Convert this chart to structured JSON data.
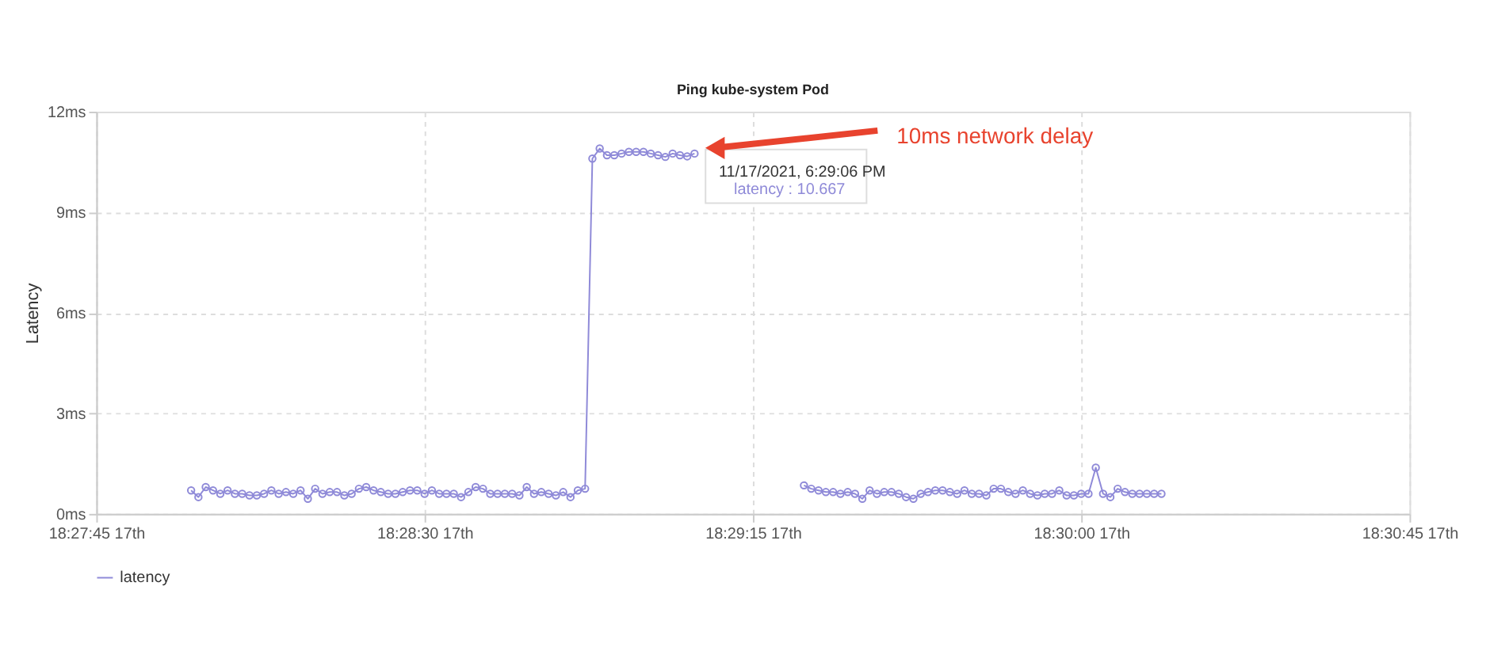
{
  "chart_data": {
    "type": "line",
    "title": "Ping kube-system Pod",
    "ylabel": "Latency",
    "series": [
      {
        "name": "latency",
        "color": "#8f8ad8",
        "x": [
          "2021-11-17T18:27:58",
          "2021-11-17T18:27:59",
          "2021-11-17T18:28:00",
          "2021-11-17T18:28:01",
          "2021-11-17T18:28:02",
          "2021-11-17T18:28:03",
          "2021-11-17T18:28:04",
          "2021-11-17T18:28:05",
          "2021-11-17T18:28:06",
          "2021-11-17T18:28:07",
          "2021-11-17T18:28:08",
          "2021-11-17T18:28:09",
          "2021-11-17T18:28:10",
          "2021-11-17T18:28:11",
          "2021-11-17T18:28:12",
          "2021-11-17T18:28:13",
          "2021-11-17T18:28:14",
          "2021-11-17T18:28:15",
          "2021-11-17T18:28:16",
          "2021-11-17T18:28:17",
          "2021-11-17T18:28:18",
          "2021-11-17T18:28:19",
          "2021-11-17T18:28:20",
          "2021-11-17T18:28:21",
          "2021-11-17T18:28:22",
          "2021-11-17T18:28:23",
          "2021-11-17T18:28:24",
          "2021-11-17T18:28:25",
          "2021-11-17T18:28:26",
          "2021-11-17T18:28:27",
          "2021-11-17T18:28:28",
          "2021-11-17T18:28:29",
          "2021-11-17T18:28:30",
          "2021-11-17T18:28:31",
          "2021-11-17T18:28:32",
          "2021-11-17T18:28:33",
          "2021-11-17T18:28:34",
          "2021-11-17T18:28:35",
          "2021-11-17T18:28:36",
          "2021-11-17T18:28:37",
          "2021-11-17T18:28:38",
          "2021-11-17T18:28:39",
          "2021-11-17T18:28:40",
          "2021-11-17T18:28:41",
          "2021-11-17T18:28:42",
          "2021-11-17T18:28:43",
          "2021-11-17T18:28:44",
          "2021-11-17T18:28:45",
          "2021-11-17T18:28:46",
          "2021-11-17T18:28:47",
          "2021-11-17T18:28:48",
          "2021-11-17T18:28:49",
          "2021-11-17T18:28:50",
          "2021-11-17T18:28:51",
          "2021-11-17T18:28:52",
          "2021-11-17T18:28:53",
          "2021-11-17T18:28:54",
          "2021-11-17T18:28:55",
          "2021-11-17T18:28:56",
          "2021-11-17T18:28:57",
          "2021-11-17T18:28:58",
          "2021-11-17T18:28:59",
          "2021-11-17T18:29:00",
          "2021-11-17T18:29:01",
          "2021-11-17T18:29:02",
          "2021-11-17T18:29:03",
          "2021-11-17T18:29:04",
          "2021-11-17T18:29:05",
          "2021-11-17T18:29:06",
          "2021-11-17T18:29:07",
          "2021-11-17T18:29:08",
          "2021-11-17T18:29:09",
          "2021-11-17T18:29:10",
          "2021-11-17T18:29:11",
          "2021-11-17T18:29:12",
          "2021-11-17T18:29:13",
          "2021-11-17T18:29:14",
          "2021-11-17T18:29:15",
          "2021-11-17T18:29:16",
          "2021-11-17T18:29:17",
          "2021-11-17T18:29:18",
          "2021-11-17T18:29:19",
          "2021-11-17T18:29:20",
          "2021-11-17T18:29:21",
          "2021-11-17T18:29:22",
          "2021-11-17T18:29:23",
          "2021-11-17T18:29:24",
          "2021-11-17T18:29:25",
          "2021-11-17T18:29:26",
          "2021-11-17T18:29:27",
          "2021-11-17T18:29:28",
          "2021-11-17T18:29:29",
          "2021-11-17T18:29:30",
          "2021-11-17T18:29:31",
          "2021-11-17T18:29:32",
          "2021-11-17T18:29:33",
          "2021-11-17T18:29:34",
          "2021-11-17T18:29:35",
          "2021-11-17T18:29:36",
          "2021-11-17T18:29:37",
          "2021-11-17T18:29:38",
          "2021-11-17T18:29:39",
          "2021-11-17T18:29:40",
          "2021-11-17T18:29:41",
          "2021-11-17T18:29:42",
          "2021-11-17T18:29:43",
          "2021-11-17T18:29:44",
          "2021-11-17T18:29:45",
          "2021-11-17T18:29:46",
          "2021-11-17T18:29:47",
          "2021-11-17T18:29:48",
          "2021-11-17T18:29:49",
          "2021-11-17T18:29:50",
          "2021-11-17T18:29:51",
          "2021-11-17T18:29:52",
          "2021-11-17T18:29:53",
          "2021-11-17T18:29:54",
          "2021-11-17T18:29:55",
          "2021-11-17T18:29:56",
          "2021-11-17T18:29:57",
          "2021-11-17T18:29:58",
          "2021-11-17T18:29:59",
          "2021-11-17T18:30:00",
          "2021-11-17T18:30:01",
          "2021-11-17T18:30:02",
          "2021-11-17T18:30:03",
          "2021-11-17T18:30:04",
          "2021-11-17T18:30:05",
          "2021-11-17T18:30:06",
          "2021-11-17T18:30:07",
          "2021-11-17T18:30:08",
          "2021-11-17T18:30:09",
          "2021-11-17T18:30:10",
          "2021-11-17T18:30:11"
        ],
        "values": [
          0.7,
          0.5,
          0.8,
          0.7,
          0.6,
          0.7,
          0.6,
          0.6,
          0.55,
          0.55,
          0.6,
          0.7,
          0.6,
          0.65,
          0.6,
          0.7,
          0.45,
          0.75,
          0.6,
          0.65,
          0.65,
          0.55,
          0.6,
          0.75,
          0.8,
          0.7,
          0.65,
          0.6,
          0.6,
          0.65,
          0.7,
          0.7,
          0.6,
          0.7,
          0.6,
          0.6,
          0.6,
          0.5,
          0.65,
          0.8,
          0.75,
          0.6,
          0.6,
          0.6,
          0.6,
          0.55,
          0.8,
          0.6,
          0.65,
          0.6,
          0.55,
          0.65,
          0.5,
          0.7,
          0.75,
          10.6,
          10.9,
          10.7,
          10.7,
          10.75,
          10.8,
          10.8,
          10.8,
          10.75,
          10.7,
          10.65,
          10.75,
          10.7,
          10.667,
          10.75,
          null,
          null,
          null,
          null,
          null,
          null,
          null,
          null,
          null,
          null,
          null,
          null,
          null,
          null,
          0.85,
          0.75,
          0.7,
          0.65,
          0.65,
          0.6,
          0.65,
          0.6,
          0.45,
          0.7,
          0.6,
          0.65,
          0.65,
          0.6,
          0.5,
          0.45,
          0.6,
          0.65,
          0.7,
          0.7,
          0.65,
          0.6,
          0.7,
          0.6,
          0.6,
          0.55,
          0.75,
          0.75,
          0.65,
          0.6,
          0.7,
          0.6,
          0.55,
          0.6,
          0.6,
          0.7,
          0.55,
          0.55,
          0.6,
          0.6,
          1.38,
          0.6,
          0.5,
          0.75,
          0.65,
          0.6,
          0.6,
          0.6,
          0.6,
          0.6
        ]
      }
    ],
    "xlim": [
      "2021-11-17T18:27:45",
      "2021-11-17T18:30:45"
    ],
    "xticks": [
      {
        "value": "2021-11-17T18:27:45",
        "label": "18:27:45 17th"
      },
      {
        "value": "2021-11-17T18:28:30",
        "label": "18:28:30 17th"
      },
      {
        "value": "2021-11-17T18:29:15",
        "label": "18:29:15 17th"
      },
      {
        "value": "2021-11-17T18:30:00",
        "label": "18:30:00 17th"
      },
      {
        "value": "2021-11-17T18:30:45",
        "label": "18:30:45 17th"
      }
    ],
    "ylim": [
      0,
      12
    ],
    "yticks": [
      {
        "value": 0,
        "label": "0ms"
      },
      {
        "value": 3,
        "label": "3ms"
      },
      {
        "value": 6,
        "label": "6ms"
      },
      {
        "value": 9,
        "label": "9ms"
      },
      {
        "value": 12,
        "label": "12ms"
      }
    ],
    "annotations": [
      "10ms network delay",
      {
        "text": "11/17/2021, 6:29:06 PM",
        "x": "2021-11-17T18:29:06",
        "y": 10.667
      },
      "latency : 10.667"
    ],
    "grid": true,
    "legend": "bottom",
    "marker": "circle",
    "line_style": "solid"
  }
}
